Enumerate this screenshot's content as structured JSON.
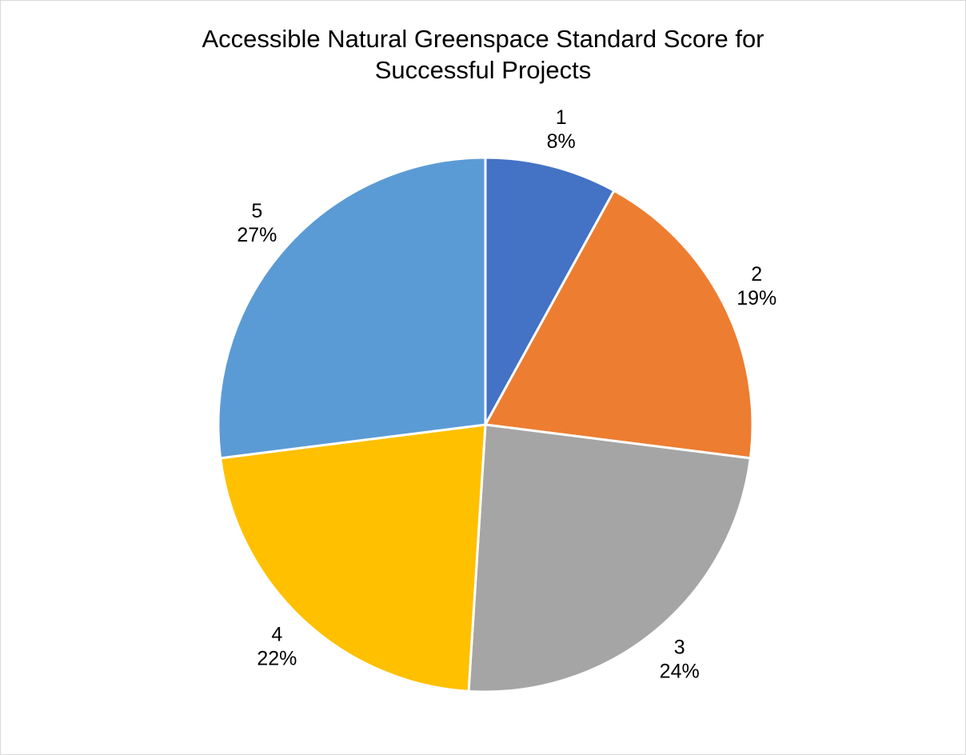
{
  "chart_data": {
    "type": "pie",
    "title": "Accessible Natural Greenspace Standard Score for Successful Projects",
    "title_lines": [
      "Accessible Natural Greenspace Standard Score for",
      "Successful Projects"
    ],
    "categories": [
      "1",
      "2",
      "3",
      "4",
      "5"
    ],
    "values": [
      8,
      19,
      24,
      22,
      27
    ],
    "labels": [
      {
        "category": "1",
        "percent": "8%"
      },
      {
        "category": "2",
        "percent": "19%"
      },
      {
        "category": "3",
        "percent": "24%"
      },
      {
        "category": "4",
        "percent": "22%"
      },
      {
        "category": "5",
        "percent": "27%"
      }
    ],
    "colors": [
      "#4472C4",
      "#ED7D31",
      "#A5A5A5",
      "#FFC000",
      "#5B9BD5"
    ],
    "start_angle": "12 o'clock",
    "direction": "clockwise",
    "legend": "none",
    "grid": false
  }
}
